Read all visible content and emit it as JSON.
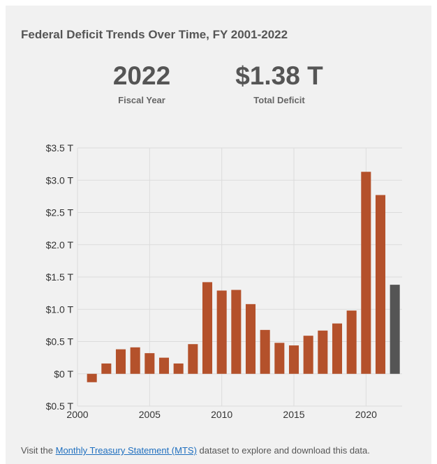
{
  "header": {
    "title": "Federal Deficit Trends Over Time, FY 2001-2022"
  },
  "kpis": {
    "year_value": "2022",
    "year_label": "Fiscal Year",
    "total_value": "$1.38 T",
    "total_label": "Total Deficit"
  },
  "footer": {
    "prefix": "Visit the ",
    "link_text": "Monthly Treasury Statement (MTS)",
    "suffix": " dataset to explore and download this data."
  },
  "colors": {
    "bar": "#b4512b",
    "highlight": "#555555",
    "grid": "#dcdcdc"
  },
  "chart_data": {
    "type": "bar",
    "x": [
      2001,
      2002,
      2003,
      2004,
      2005,
      2006,
      2007,
      2008,
      2009,
      2010,
      2011,
      2012,
      2013,
      2014,
      2015,
      2016,
      2017,
      2018,
      2019,
      2020,
      2021,
      2022
    ],
    "values": [
      -0.13,
      0.16,
      0.38,
      0.41,
      0.32,
      0.25,
      0.16,
      0.46,
      1.42,
      1.29,
      1.3,
      1.08,
      0.68,
      0.48,
      0.44,
      0.59,
      0.67,
      0.78,
      0.98,
      3.13,
      2.77,
      1.38
    ],
    "highlight_index": 21,
    "yticks": [
      -0.5,
      0,
      0.5,
      1.0,
      1.5,
      2.0,
      2.5,
      3.0,
      3.5
    ],
    "ytick_labels": [
      "$0.5 T",
      "$0 T",
      "$0.5 T",
      "$1.0 T",
      "$1.5 T",
      "$2.0 T",
      "$2.5 T",
      "$3.0 T",
      "$3.5 T"
    ],
    "xticks": [
      2000,
      2005,
      2010,
      2015,
      2020
    ],
    "ylim": [
      -0.5,
      3.5
    ],
    "xlim": [
      2000,
      2022.5
    ],
    "grid": true
  }
}
